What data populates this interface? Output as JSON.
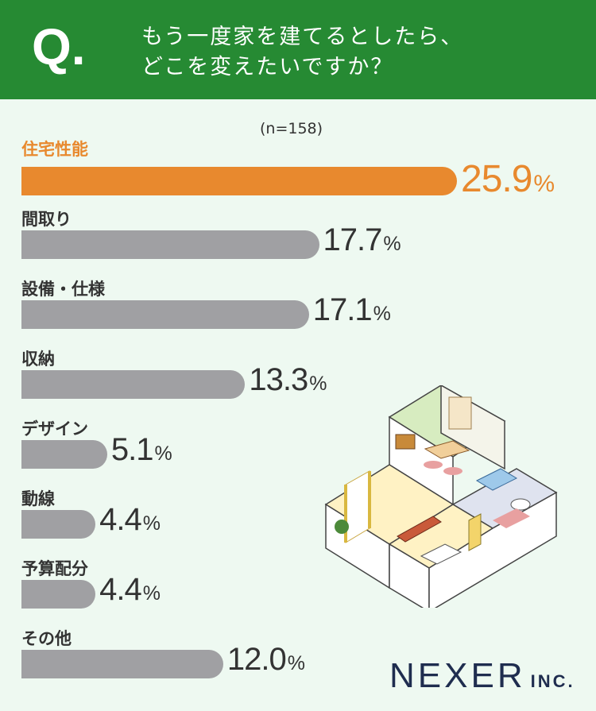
{
  "header": {
    "q_mark": "Q.",
    "question_line1": "もう一度家を建てるとしたら、",
    "question_line2": "どこを変えたいですか？"
  },
  "sample": "(n=158)",
  "chart_data": {
    "type": "bar",
    "orientation": "horizontal",
    "n": 158,
    "categories": [
      "住宅性能",
      "間取り",
      "設備・仕様",
      "収納",
      "デザイン",
      "動線",
      "予算配分",
      "その他"
    ],
    "values": [
      25.9,
      17.7,
      17.1,
      13.3,
      5.1,
      4.4,
      4.4,
      12.0
    ],
    "labels": [
      "25.9",
      "17.7",
      "17.1",
      "13.3",
      "5.1",
      "4.4",
      "4.4",
      "12.0"
    ],
    "unit": "%",
    "highlight_index": 0,
    "colors": {
      "highlight": "#e8892e",
      "default": "#a0a0a3"
    }
  },
  "logo": {
    "main": "NEXER",
    "sub": "INC."
  }
}
